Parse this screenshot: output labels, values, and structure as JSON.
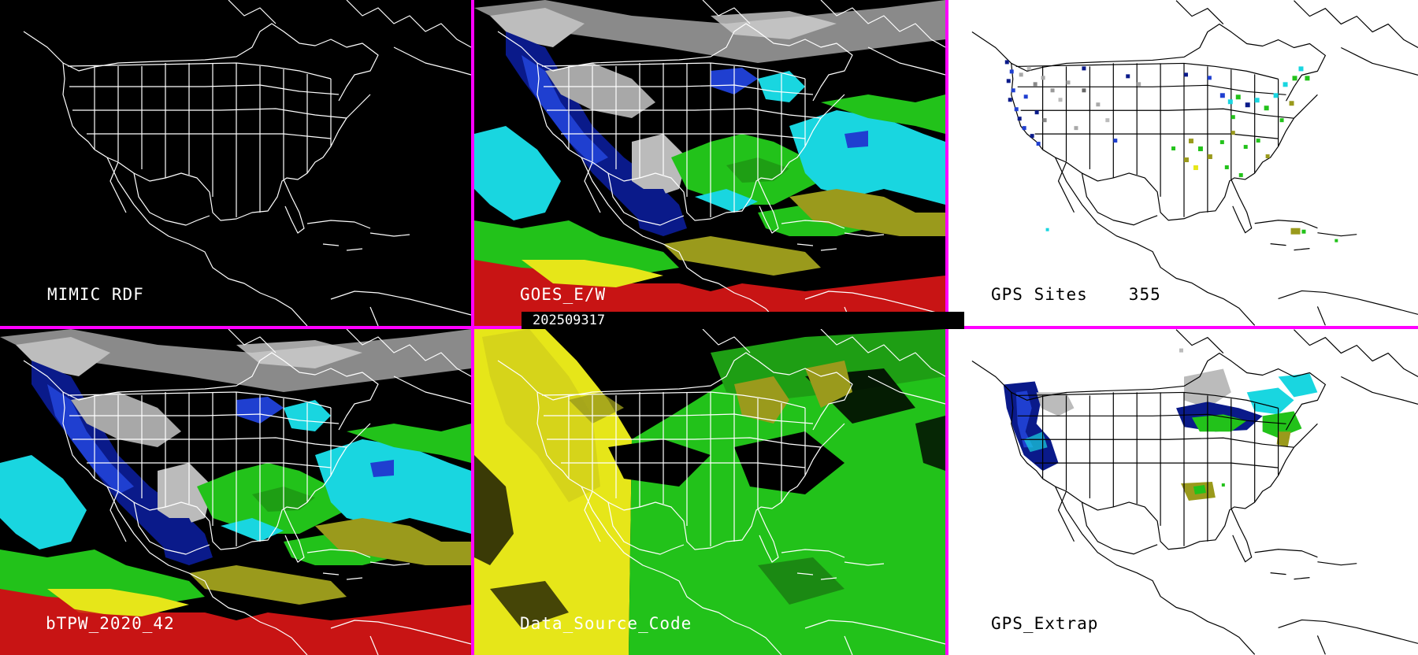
{
  "timestamp": "202509317",
  "panels": {
    "mimic_rdf": {
      "label": "MIMIC RDF",
      "background": "#000000"
    },
    "goes": {
      "label": "GOES_E/W",
      "background": "#000000"
    },
    "gps_sites": {
      "label": "GPS Sites",
      "count": "355",
      "background": "#ffffff"
    },
    "btpw": {
      "label": "bTPW_2020_42",
      "background": "#000000"
    },
    "data_source": {
      "label": "Data_Source_Code",
      "background": "#000000"
    },
    "gps_extrap": {
      "label": "GPS_Extrap",
      "background": "#ffffff"
    }
  },
  "colors": {
    "divider": "#ff00ff",
    "gray_low": "#a8a8a8",
    "dark_blue": "#0a1a8a",
    "blue": "#1f3fd0",
    "cyan": "#19d6e0",
    "green": "#22c21a",
    "olive": "#9a9a1c",
    "yellow": "#e6e619",
    "red": "#c81414"
  }
}
